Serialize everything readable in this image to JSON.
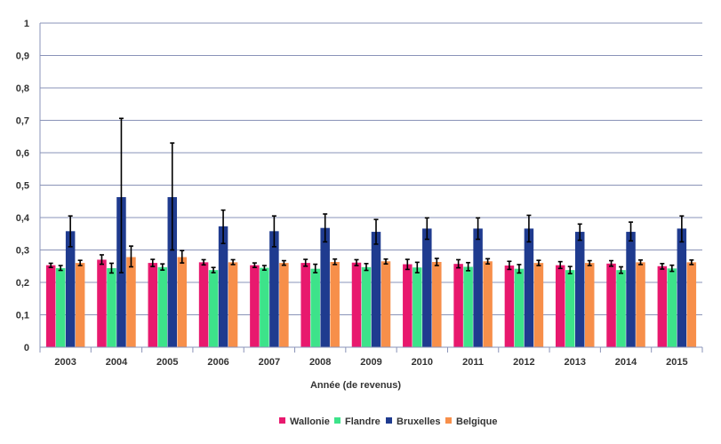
{
  "chart_data": {
    "type": "bar",
    "title": "",
    "xlabel": "Année (de revenus)",
    "ylabel": "",
    "ylim": [
      0,
      1
    ],
    "yticks": [
      "0",
      "0,1",
      "0,2",
      "0,3",
      "0,4",
      "0,5",
      "0,6",
      "0,7",
      "0,8",
      "0,9",
      "1"
    ],
    "grid": true,
    "legend_position": "bottom",
    "categories": [
      "2003",
      "2004",
      "2005",
      "2006",
      "2007",
      "2008",
      "2009",
      "2010",
      "2011",
      "2012",
      "2013",
      "2014",
      "2015"
    ],
    "series": [
      {
        "name": "Wallonie",
        "color": "#e8196e",
        "values": [
          0.253,
          0.27,
          0.26,
          0.262,
          0.253,
          0.26,
          0.261,
          0.256,
          0.257,
          0.252,
          0.253,
          0.258,
          0.25
        ],
        "error_low": [
          0.246,
          0.256,
          0.249,
          0.254,
          0.246,
          0.25,
          0.252,
          0.24,
          0.245,
          0.24,
          0.243,
          0.25,
          0.241
        ],
        "error_high": [
          0.259,
          0.285,
          0.271,
          0.27,
          0.26,
          0.271,
          0.27,
          0.271,
          0.27,
          0.265,
          0.264,
          0.267,
          0.258
        ]
      },
      {
        "name": "Flandre",
        "color": "#3de38a",
        "values": [
          0.244,
          0.244,
          0.247,
          0.238,
          0.245,
          0.242,
          0.247,
          0.246,
          0.248,
          0.242,
          0.238,
          0.238,
          0.243
        ],
        "error_low": [
          0.237,
          0.229,
          0.238,
          0.23,
          0.238,
          0.23,
          0.237,
          0.23,
          0.236,
          0.229,
          0.227,
          0.228,
          0.234
        ],
        "error_high": [
          0.252,
          0.259,
          0.257,
          0.246,
          0.252,
          0.256,
          0.258,
          0.262,
          0.261,
          0.255,
          0.249,
          0.248,
          0.253
        ]
      },
      {
        "name": "Bruxelles",
        "color": "#1f3b8f",
        "values": [
          0.358,
          0.463,
          0.463,
          0.373,
          0.358,
          0.368,
          0.356,
          0.366,
          0.366,
          0.366,
          0.356,
          0.356,
          0.366
        ],
        "error_low": [
          0.31,
          0.23,
          0.3,
          0.32,
          0.31,
          0.325,
          0.318,
          0.333,
          0.333,
          0.325,
          0.33,
          0.328,
          0.325
        ],
        "error_high": [
          0.405,
          0.706,
          0.63,
          0.423,
          0.405,
          0.411,
          0.394,
          0.399,
          0.399,
          0.407,
          0.38,
          0.386,
          0.405
        ]
      },
      {
        "name": "Belgique",
        "color": "#f78f4a",
        "values": [
          0.26,
          0.278,
          0.278,
          0.262,
          0.26,
          0.263,
          0.265,
          0.263,
          0.265,
          0.26,
          0.26,
          0.262,
          0.262
        ],
        "error_low": [
          0.252,
          0.248,
          0.26,
          0.255,
          0.253,
          0.255,
          0.257,
          0.252,
          0.257,
          0.252,
          0.252,
          0.255,
          0.255
        ],
        "error_high": [
          0.268,
          0.312,
          0.298,
          0.27,
          0.267,
          0.272,
          0.272,
          0.274,
          0.273,
          0.268,
          0.267,
          0.269,
          0.269
        ]
      }
    ]
  }
}
